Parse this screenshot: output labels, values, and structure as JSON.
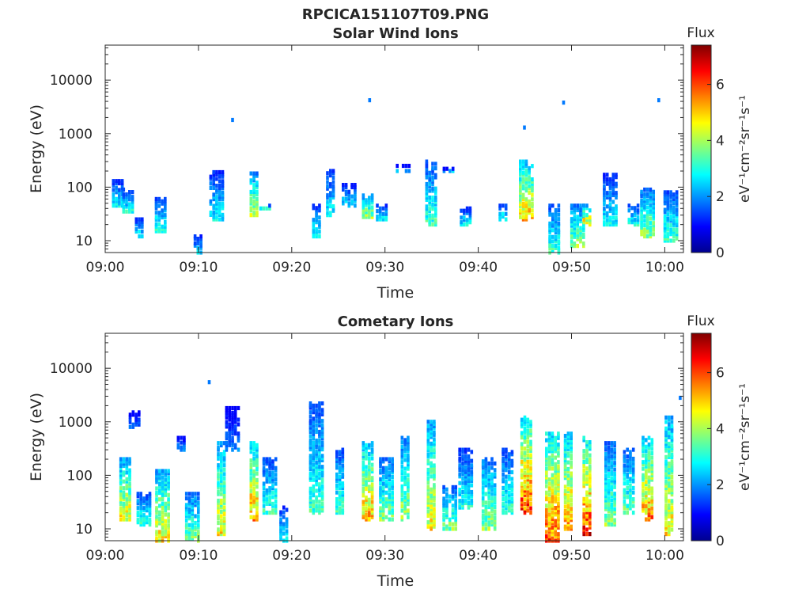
{
  "figure": {
    "main_title": "RPCICA151107T09.PNG"
  },
  "colorbar": {
    "title": "Flux",
    "label": "eV⁻¹cm⁻²sr⁻¹s⁻¹",
    "ticks": [
      "0",
      "2",
      "4",
      "6"
    ],
    "range": [
      0,
      7.4
    ],
    "colormap": "jet"
  },
  "chart_data": [
    {
      "type": "heatmap",
      "title": "Solar Wind Ions",
      "xlabel": "Time",
      "ylabel": "Energy (eV)",
      "x_ticks": [
        "09:00",
        "09:10",
        "09:20",
        "09:30",
        "09:40",
        "09:50",
        "10:00"
      ],
      "y_ticks": [
        "10",
        "100",
        "1000",
        "10000"
      ],
      "y_scale": "log",
      "x_range": [
        "09:00",
        "10:02"
      ],
      "y_range": [
        6,
        45000
      ],
      "blobs": [
        {
          "t": "09:01.2",
          "e": [
            45,
            130
          ],
          "flux": 3.0
        },
        {
          "t": "09:02.3",
          "e": [
            35,
            90
          ],
          "flux": 3.2
        },
        {
          "t": "09:03.5",
          "e": [
            12,
            25
          ],
          "flux": 3.0
        },
        {
          "t": "09:05.8",
          "e": [
            15,
            60
          ],
          "flux": 3.3
        },
        {
          "t": "09:09.8",
          "e": [
            6,
            12
          ],
          "flux": 2.8
        },
        {
          "t": "09:11.8",
          "e": [
            25,
            190
          ],
          "flux": 3.0
        },
        {
          "t": "09:13.5",
          "e": [
            1800,
            1800
          ],
          "flux": 1.8
        },
        {
          "t": "09:15.8",
          "e": [
            30,
            180
          ],
          "flux": 4.5
        },
        {
          "t": "09:17.0",
          "e": [
            40,
            45
          ],
          "flux": 3.0
        },
        {
          "t": "09:22.5",
          "e": [
            12,
            45
          ],
          "flux": 3.2
        },
        {
          "t": "09:24.0",
          "e": [
            30,
            200
          ],
          "flux": 3.0
        },
        {
          "t": "09:26.0",
          "e": [
            45,
            110
          ],
          "flux": 2.8
        },
        {
          "t": "09:28.0",
          "e": [
            25,
            70
          ],
          "flux": 4.6
        },
        {
          "t": "09:28.2",
          "e": [
            4200,
            4200
          ],
          "flux": 1.8
        },
        {
          "t": "09:29.5",
          "e": [
            25,
            45
          ],
          "flux": 3.0
        },
        {
          "t": "09:31.8",
          "e": [
            200,
            250
          ],
          "flux": 2.5
        },
        {
          "t": "09:34.8",
          "e": [
            20,
            300
          ],
          "flux": 3.5
        },
        {
          "t": "09:36.5",
          "e": [
            200,
            220
          ],
          "flux": 2.5
        },
        {
          "t": "09:38.5",
          "e": [
            20,
            40
          ],
          "flux": 3.0
        },
        {
          "t": "09:42.5",
          "e": [
            25,
            45
          ],
          "flux": 3.3
        },
        {
          "t": "09:45.0",
          "e": [
            25,
            300
          ],
          "flux": 5.5
        },
        {
          "t": "09:44.8",
          "e": [
            1300,
            1300
          ],
          "flux": 1.8
        },
        {
          "t": "09:48.0",
          "e": [
            6,
            45
          ],
          "flux": 3.5
        },
        {
          "t": "09:49.0",
          "e": [
            3800,
            3800
          ],
          "flux": 1.8
        },
        {
          "t": "09:50.5",
          "e": [
            8,
            45
          ],
          "flux": 4.2
        },
        {
          "t": "09:51.5",
          "e": [
            20,
            45
          ],
          "flux": 5.4
        },
        {
          "t": "09:54.0",
          "e": [
            20,
            170
          ],
          "flux": 3.0
        },
        {
          "t": "09:56.5",
          "e": [
            20,
            45
          ],
          "flux": 3.2
        },
        {
          "t": "09:58.0",
          "e": [
            12,
            90
          ],
          "flux": 4.2
        },
        {
          "t": "09:59.2",
          "e": [
            4200,
            4200
          ],
          "flux": 1.8
        },
        {
          "t": "10:00.5",
          "e": [
            10,
            80
          ],
          "flux": 3.5
        }
      ]
    },
    {
      "type": "heatmap",
      "title": "Cometary Ions",
      "xlabel": "Time",
      "ylabel": "Energy (eV)",
      "x_ticks": [
        "09:00",
        "09:10",
        "09:20",
        "09:30",
        "09:40",
        "09:50",
        "10:00"
      ],
      "y_ticks": [
        "10",
        "100",
        "1000",
        "10000"
      ],
      "y_scale": "log",
      "x_range": [
        "09:00",
        "10:02"
      ],
      "y_range": [
        6,
        45000
      ],
      "blobs": [
        {
          "t": "09:02.0",
          "e": [
            15,
            200
          ],
          "flux": 5.0
        },
        {
          "t": "09:03.0",
          "e": [
            800,
            1500
          ],
          "flux": 2.0
        },
        {
          "t": "09:04.0",
          "e": [
            12,
            45
          ],
          "flux": 3.5
        },
        {
          "t": "09:06.0",
          "e": [
            6,
            120
          ],
          "flux": 5.2
        },
        {
          "t": "09:08.0",
          "e": [
            300,
            500
          ],
          "flux": 2.2
        },
        {
          "t": "09:09.2",
          "e": [
            6,
            45
          ],
          "flux": 4.0
        },
        {
          "t": "09:11.0",
          "e": [
            5500,
            5500
          ],
          "flux": 1.8
        },
        {
          "t": "09:12.3",
          "e": [
            8,
            400
          ],
          "flux": 5.0
        },
        {
          "t": "09:13.5",
          "e": [
            300,
            1800
          ],
          "flux": 2.0
        },
        {
          "t": "09:15.8",
          "e": [
            15,
            400
          ],
          "flux": 5.8
        },
        {
          "t": "09:17.5",
          "e": [
            20,
            200
          ],
          "flux": 3.5
        },
        {
          "t": "09:19.0",
          "e": [
            6,
            25
          ],
          "flux": 3.0
        },
        {
          "t": "09:22.5",
          "e": [
            20,
            2200
          ],
          "flux": 3.5
        },
        {
          "t": "09:25.0",
          "e": [
            20,
            300
          ],
          "flux": 3.5
        },
        {
          "t": "09:28.0",
          "e": [
            15,
            400
          ],
          "flux": 5.6
        },
        {
          "t": "09:30.0",
          "e": [
            15,
            200
          ],
          "flux": 4.0
        },
        {
          "t": "09:32.0",
          "e": [
            15,
            500
          ],
          "flux": 4.3
        },
        {
          "t": "09:34.8",
          "e": [
            10,
            1000
          ],
          "flux": 5.0
        },
        {
          "t": "09:36.8",
          "e": [
            10,
            60
          ],
          "flux": 4.0
        },
        {
          "t": "09:38.5",
          "e": [
            25,
            300
          ],
          "flux": 3.2
        },
        {
          "t": "09:41.0",
          "e": [
            10,
            200
          ],
          "flux": 4.2
        },
        {
          "t": "09:43.0",
          "e": [
            20,
            300
          ],
          "flux": 3.5
        },
        {
          "t": "09:45.0",
          "e": [
            20,
            1200
          ],
          "flux": 6.5
        },
        {
          "t": "09:47.8",
          "e": [
            6,
            600
          ],
          "flux": 6.3
        },
        {
          "t": "09:49.5",
          "e": [
            10,
            600
          ],
          "flux": 5.8
        },
        {
          "t": "09:51.5",
          "e": [
            8,
            500
          ],
          "flux": 6.6
        },
        {
          "t": "09:54.0",
          "e": [
            12,
            400
          ],
          "flux": 4.0
        },
        {
          "t": "09:56.0",
          "e": [
            20,
            300
          ],
          "flux": 3.8
        },
        {
          "t": "09:58.0",
          "e": [
            15,
            500
          ],
          "flux": 5.8
        },
        {
          "t": "10:00.3",
          "e": [
            8,
            1200
          ],
          "flux": 5.2
        },
        {
          "t": "10:01.5",
          "e": [
            2800,
            2800
          ],
          "flux": 1.8
        }
      ]
    }
  ]
}
